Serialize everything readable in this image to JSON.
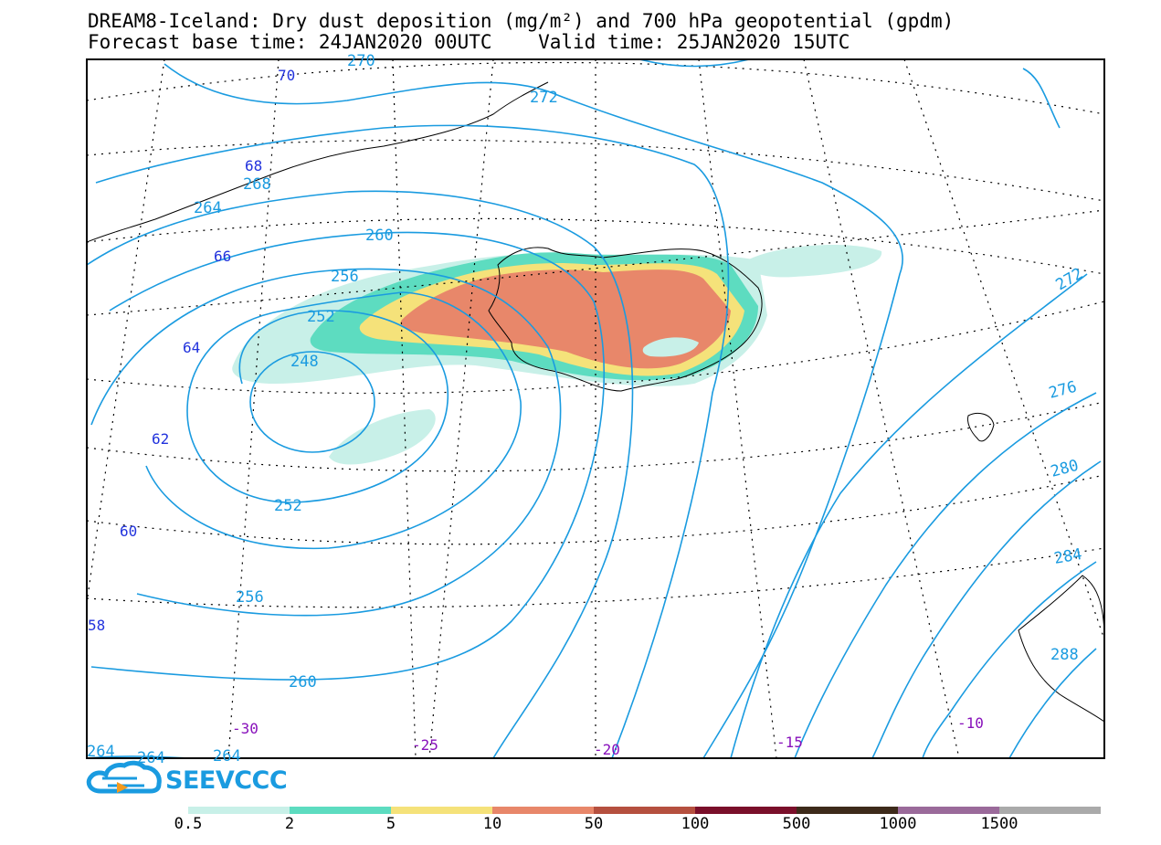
{
  "title": {
    "line1": "DREAM8-Iceland: Dry dust deposition (mg/m²) and 700 hPa geopotential (gpdm)",
    "line2": "Forecast base time: 24JAN2020 00UTC    Valid time: 25JAN2020 15UTC"
  },
  "logo": {
    "text": "SEEVCCC",
    "icon": "cloud-icon"
  },
  "contour_labels": [
    "270",
    "272",
    "268",
    "264",
    "260",
    "256",
    "252",
    "248",
    "252",
    "256",
    "260",
    "264",
    "264",
    "264",
    "272",
    "276",
    "280",
    "284",
    "288"
  ],
  "lat_labels": [
    "70",
    "68",
    "66",
    "64",
    "62",
    "60",
    "58"
  ],
  "lon_labels": [
    "-30",
    "-25",
    "-20",
    "-15",
    "-10"
  ],
  "colorbar": {
    "colors": [
      "#c8f0e8",
      "#5ddcc0",
      "#f5e27a",
      "#e8876a",
      "#b5503f",
      "#7a0f2a",
      "#3d2a1a",
      "#9a6a9a",
      "#aaaaaa"
    ],
    "labels": [
      "0.5",
      "2",
      "5",
      "10",
      "50",
      "100",
      "500",
      "1000",
      "1500"
    ]
  },
  "colors": {
    "contour": "#1a9be0",
    "lat_label": "#2233dd",
    "lon_label": "#8811bb"
  }
}
